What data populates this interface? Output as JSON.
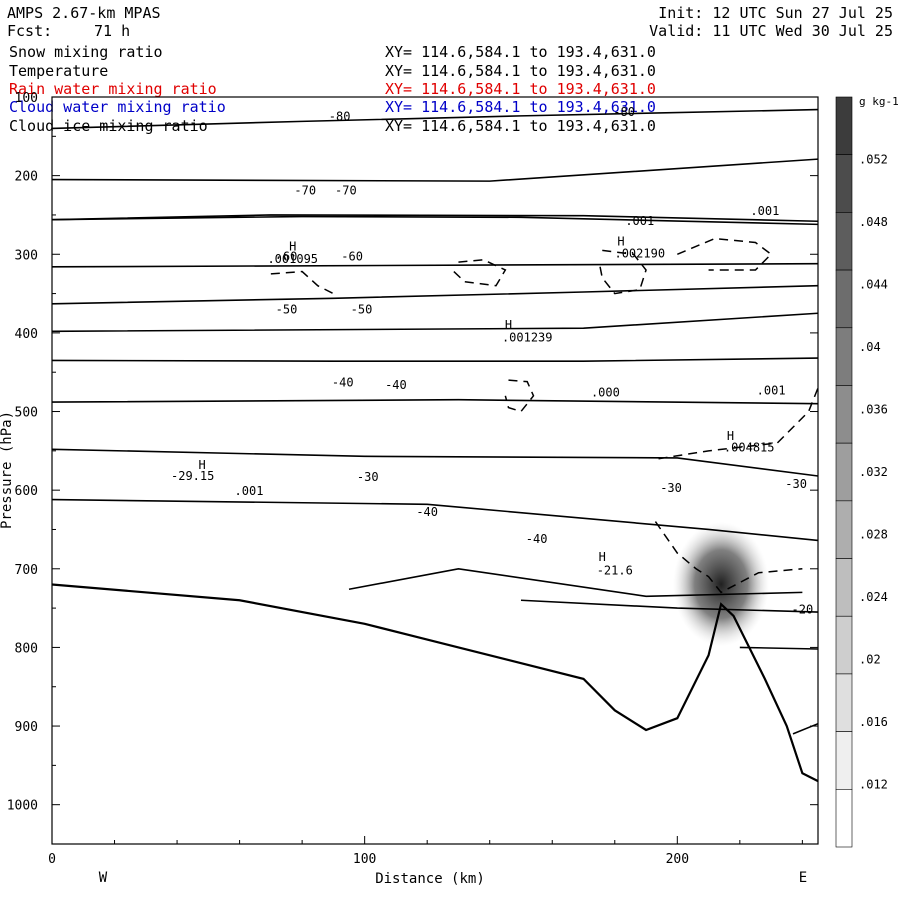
{
  "header": {
    "model": "AMPS 2.67-km MPAS",
    "init": "Init: 12 UTC Sun 27 Jul 25",
    "fcst_label": "Fcst:",
    "fcst_value": "71 h",
    "valid": "Valid: 11 UTC Wed 30 Jul 25"
  },
  "fields": [
    {
      "name": "Snow mixing ratio",
      "xy": "XY= 114.6,584.1 to 193.4,631.0",
      "color": "#000000"
    },
    {
      "name": "Temperature",
      "xy": "XY= 114.6,584.1 to 193.4,631.0",
      "color": "#000000"
    },
    {
      "name": "Rain water mixing ratio",
      "xy": "XY= 114.6,584.1 to 193.4,631.0",
      "color": "#e00000"
    },
    {
      "name": "Cloud water mixing ratio",
      "xy": "XY= 114.6,584.1 to 193.4,631.0",
      "color": "#0000c8"
    },
    {
      "name": "Cloud ice mixing ratio",
      "xy": "XY= 114.6,584.1 to 193.4,631.0",
      "color": "#000000"
    }
  ],
  "chart_data": {
    "type": "contour",
    "xlabel": "Distance (km)",
    "ylabel": "Pressure (hPa)",
    "xlim": [
      0,
      245
    ],
    "ylim": [
      1050,
      100
    ],
    "x_ticks": [
      0,
      100,
      200
    ],
    "y_ticks": [
      100,
      200,
      300,
      400,
      500,
      600,
      700,
      800,
      900,
      1000
    ],
    "x_end_labels": {
      "left": "W",
      "right": "E"
    },
    "isotherms": [
      {
        "label": "-80",
        "points": [
          [
            0,
            140
          ],
          [
            80,
            131
          ],
          [
            150,
            124
          ],
          [
            245,
            116
          ]
        ],
        "labels_at": [
          [
            92,
            125
          ],
          [
            183,
            119
          ]
        ]
      },
      {
        "label": "",
        "points": [
          [
            0,
            205
          ],
          [
            140,
            207
          ],
          [
            245,
            179
          ]
        ],
        "labels_at": []
      },
      {
        "label": "",
        "points": [
          [
            0,
            256
          ],
          [
            70,
            250
          ],
          [
            170,
            251
          ],
          [
            245,
            258
          ]
        ],
        "labels_at": []
      },
      {
        "label": "-70",
        "points": [
          [
            0,
            256
          ],
          [
            80,
            252
          ],
          [
            150,
            253
          ],
          [
            245,
            262
          ]
        ],
        "labels_at": [
          [
            81,
            219
          ],
          [
            94,
            219
          ]
        ]
      },
      {
        "label": "",
        "points": [
          [
            0,
            316
          ],
          [
            245,
            312
          ]
        ],
        "labels_at": []
      },
      {
        "label": "-60",
        "points": [
          [
            0,
            363
          ],
          [
            90,
            356
          ],
          [
            170,
            348
          ],
          [
            245,
            340
          ]
        ],
        "labels_at": [
          [
            75,
            303
          ],
          [
            96,
            303
          ]
        ]
      },
      {
        "label": "",
        "points": [
          [
            0,
            398
          ],
          [
            170,
            394
          ],
          [
            245,
            375
          ]
        ],
        "labels_at": []
      },
      {
        "label": "-50",
        "points": [
          [
            0,
            435
          ],
          [
            90,
            436
          ],
          [
            170,
            436
          ],
          [
            245,
            432
          ]
        ],
        "labels_at": [
          [
            75,
            370
          ],
          [
            99,
            370
          ]
        ]
      },
      {
        "label": "",
        "points": [
          [
            0,
            488
          ],
          [
            130,
            485
          ],
          [
            245,
            490
          ]
        ],
        "labels_at": []
      },
      {
        "label": "-40",
        "points": [
          [
            0,
            548
          ],
          [
            100,
            557
          ],
          [
            200,
            559
          ],
          [
            245,
            582
          ]
        ],
        "labels_at": [
          [
            93,
            463
          ],
          [
            110,
            466
          ]
        ]
      },
      {
        "label": "",
        "points": [
          [
            0,
            612
          ],
          [
            120,
            618
          ],
          [
            210,
            650
          ],
          [
            245,
            664
          ]
        ],
        "labels_at": []
      },
      {
        "label": "-30",
        "points": [
          [
            95,
            726
          ],
          [
            130,
            700
          ],
          [
            190,
            735
          ],
          [
            240,
            730
          ]
        ],
        "labels_at": [
          [
            101,
            583
          ],
          [
            198,
            597
          ],
          [
            238,
            592
          ]
        ]
      },
      {
        "label": "",
        "points": [
          [
            150,
            740
          ],
          [
            200,
            750
          ],
          [
            245,
            755
          ]
        ],
        "labels_at": []
      },
      {
        "label": "",
        "points": [
          [
            220,
            800
          ],
          [
            245,
            802
          ]
        ],
        "labels_at": []
      },
      {
        "label": "-20",
        "points": [
          [
            237,
            910
          ],
          [
            245,
            897
          ]
        ],
        "labels_at": [
          [
            240,
            752
          ]
        ]
      }
    ],
    "terrain": [
      [
        0,
        720
      ],
      [
        60,
        740
      ],
      [
        100,
        770
      ],
      [
        130,
        800
      ],
      [
        170,
        840
      ],
      [
        180,
        880
      ],
      [
        190,
        905
      ],
      [
        200,
        890
      ],
      [
        210,
        810
      ],
      [
        214,
        745
      ],
      [
        218,
        760
      ],
      [
        228,
        840
      ],
      [
        235,
        900
      ],
      [
        240,
        960
      ],
      [
        245,
        970
      ]
    ],
    "annotations": [
      {
        "text": "H",
        "x": 77,
        "y": 290
      },
      {
        "text": ".001095",
        "x": 77,
        "y": 306
      },
      {
        "text": ".001",
        "x": 188,
        "y": 258
      },
      {
        "text": "H",
        "x": 182,
        "y": 284
      },
      {
        "text": ".002190",
        "x": 188,
        "y": 299
      },
      {
        "text": ".001",
        "x": 228,
        "y": 245
      },
      {
        "text": "H",
        "x": 146,
        "y": 390
      },
      {
        "text": ".001239",
        "x": 152,
        "y": 406
      },
      {
        "text": ".000",
        "x": 177,
        "y": 476
      },
      {
        "text": ".001",
        "x": 230,
        "y": 473
      },
      {
        "text": "H",
        "x": 217,
        "y": 531
      },
      {
        "text": ".004815",
        "x": 223,
        "y": 546
      },
      {
        "text": "H",
        "x": 48,
        "y": 568
      },
      {
        "text": "-29.15",
        "x": 45,
        "y": 582
      },
      {
        "text": ".001",
        "x": 63,
        "y": 601
      },
      {
        "text": "-40",
        "x": 120,
        "y": 628
      },
      {
        "text": "-40",
        "x": 155,
        "y": 662
      },
      {
        "text": "H",
        "x": 176,
        "y": 685
      },
      {
        "text": "-21.6",
        "x": 180,
        "y": 702
      }
    ],
    "colorbar": {
      "unit": "g kg-1",
      "tick_labels": [
        ".052",
        ".048",
        ".044",
        ".04",
        ".036",
        ".032",
        ".028",
        ".024",
        ".02",
        ".016",
        ".012"
      ],
      "tick_values": [
        0.052,
        0.048,
        0.044,
        0.04,
        0.036,
        0.032,
        0.028,
        0.024,
        0.02,
        0.016,
        0.012
      ],
      "range": [
        0.008,
        0.056
      ],
      "steps": 13
    },
    "shaded_max": {
      "x": 214,
      "p": 745,
      "value_max": 0.056
    }
  }
}
